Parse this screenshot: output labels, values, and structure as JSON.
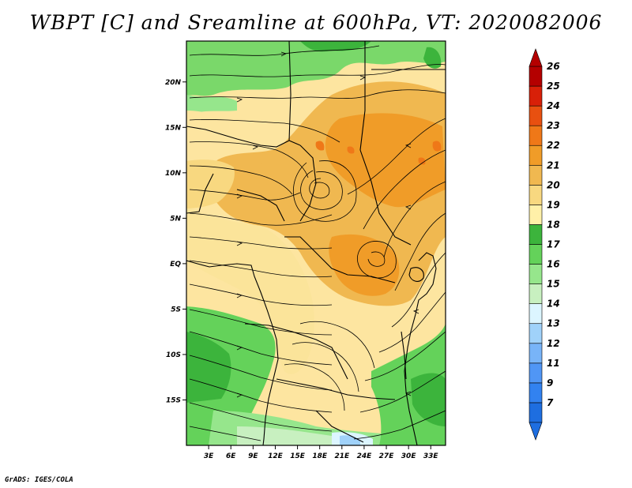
{
  "title": "WBPT [C] and Sreamline at 600hPa, VT: 2020082006",
  "credit": "GrADS: IGES/COLA",
  "map": {
    "lat_labels": [
      "20N",
      "15N",
      "10N",
      "5N",
      "EQ",
      "5S",
      "10S",
      "15S"
    ],
    "lat_values": [
      20,
      15,
      10,
      5,
      0,
      -5,
      -10,
      -15
    ],
    "lon_labels": [
      "3E",
      "6E",
      "9E",
      "12E",
      "15E",
      "18E",
      "21E",
      "24E",
      "27E",
      "30E",
      "33E"
    ],
    "lon_values": [
      3,
      6,
      9,
      12,
      15,
      18,
      21,
      24,
      27,
      30,
      33
    ],
    "lon_range": [
      0,
      35
    ],
    "lat_range": [
      -20,
      24.5
    ]
  },
  "colorbar": {
    "labels": [
      "7",
      "9",
      "11",
      "12",
      "13",
      "14",
      "15",
      "16",
      "17",
      "18",
      "19",
      "20",
      "21",
      "22",
      "23",
      "24",
      "25",
      "26"
    ],
    "colors": [
      "#1e6ee0",
      "#3282f0",
      "#5096f5",
      "#78b4f8",
      "#a0d2fa",
      "#dcf5ff",
      "#c8f0c0",
      "#96e68c",
      "#64d25a",
      "#3cb43c",
      "#fff0a8",
      "#f8d880",
      "#f0b850",
      "#f09c28",
      "#ef7818",
      "#e85010",
      "#d82008",
      "#b40000"
    ],
    "unit": "C"
  }
}
